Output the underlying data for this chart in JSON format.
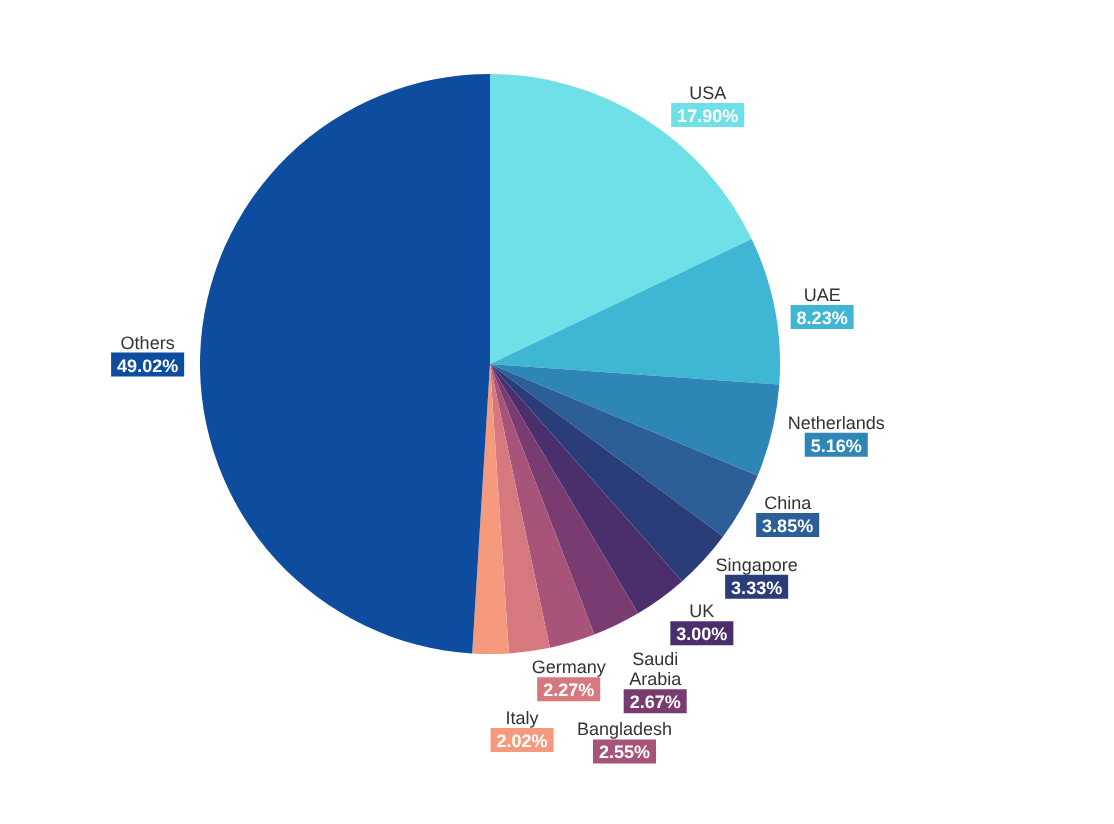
{
  "chart_data": {
    "type": "pie",
    "categories": [
      "USA",
      "UAE",
      "Netherlands",
      "China",
      "Singapore",
      "UK",
      "Saudi Arabia",
      "Bangladesh",
      "Germany",
      "Italy",
      "Others"
    ],
    "values": [
      17.9,
      8.23,
      5.16,
      3.85,
      3.33,
      3.0,
      2.67,
      2.55,
      2.27,
      2.02,
      49.02
    ],
    "value_labels": [
      "17.90%",
      "8.23%",
      "5.16%",
      "3.85%",
      "3.33%",
      "3.00%",
      "2.67%",
      "2.55%",
      "2.27%",
      "2.02%",
      "49.02%"
    ],
    "colors": [
      "#70e0e8",
      "#3fb6d4",
      "#2e86b6",
      "#2c5e98",
      "#2b3d78",
      "#4b2f6c",
      "#793c70",
      "#a8547a",
      "#d6797f",
      "#f59a7c",
      "#0d4c9e"
    ],
    "legend": false
  }
}
